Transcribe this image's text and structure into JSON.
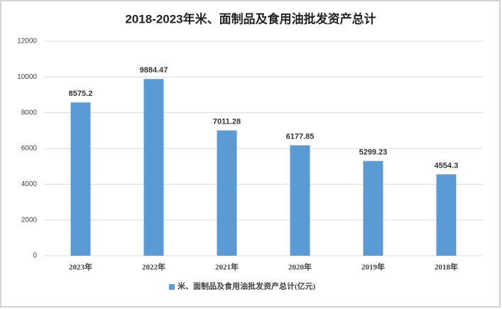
{
  "chart_data": {
    "type": "bar",
    "title": "2018-2023年米、面制品及食用油批发资产总计",
    "categories": [
      "2023年",
      "2022年",
      "2021年",
      "2020年",
      "2019年",
      "2018年"
    ],
    "series": [
      {
        "name": "米、面制品及食用油批发资产总计(亿元)",
        "color": "#5b9bd5",
        "values": [
          8575.2,
          9884.47,
          7011.28,
          6177.85,
          5299.23,
          4554.3
        ]
      }
    ],
    "ylim": [
      0,
      12000
    ],
    "yticks": [
      0,
      2000,
      4000,
      6000,
      8000,
      10000,
      12000
    ],
    "grid": true,
    "legend": "bottom"
  }
}
